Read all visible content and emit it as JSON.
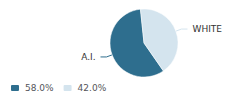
{
  "chart_data": {
    "type": "pie",
    "categories": [
      "A.I.",
      "WHITE"
    ],
    "values": [
      58.0,
      42.0
    ],
    "value_labels": [
      "58.0%",
      "42.0%"
    ],
    "colors": [
      "#2e6e8e",
      "#d4e4ee"
    ],
    "legend": "lower left"
  }
}
